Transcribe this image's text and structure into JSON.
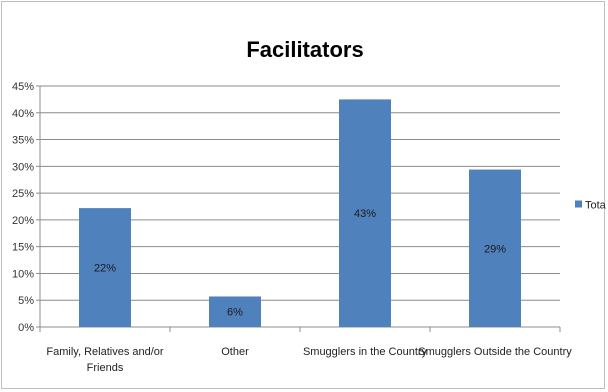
{
  "chart_data": {
    "type": "bar",
    "title": "Facilitators",
    "xlabel": "",
    "ylabel": "",
    "categories": [
      [
        "Family, Relatives and/or",
        "Friends"
      ],
      [
        "Other"
      ],
      [
        "Smugglers in the Country"
      ],
      [
        "Smugglers Outside the Country"
      ]
    ],
    "series": [
      {
        "name": "Total",
        "color": "#4f81bd",
        "values": [
          22.2,
          5.7,
          42.5,
          29.4
        ],
        "labels": [
          "22%",
          "6%",
          "43%",
          "29%"
        ]
      }
    ],
    "ylim": [
      0,
      45
    ],
    "yticks": [
      "0%",
      "5%",
      "10%",
      "15%",
      "20%",
      "25%",
      "30%",
      "35%",
      "40%",
      "45%"
    ],
    "ytick_values": [
      0,
      5,
      10,
      15,
      20,
      25,
      30,
      35,
      40,
      45
    ],
    "grid": true,
    "legend_position": "right"
  }
}
